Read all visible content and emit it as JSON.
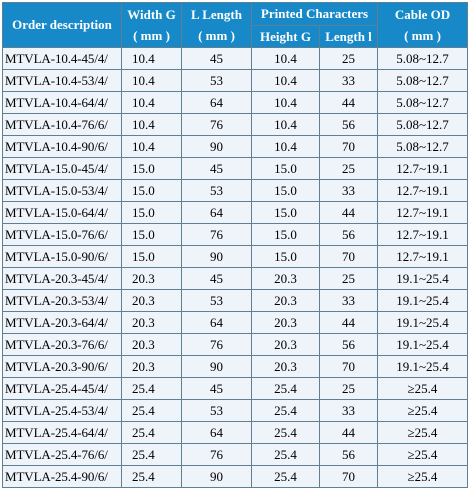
{
  "header": {
    "order_description": "Order description",
    "width_g": "Width G",
    "width_g_unit": "( mm )",
    "l_length": "L Length",
    "l_length_unit": "( mm )",
    "printed_characters": "Printed Characters",
    "height_g": "Height G",
    "length_l": "Length l",
    "cable_od": "Cable OD",
    "cable_od_unit": "( mm )"
  },
  "rows": [
    {
      "desc": "MTVLA-10.4-45/4/",
      "width": "10.4",
      "length": "45",
      "height": "10.4",
      "len_l": "25",
      "od": "5.08~12.7"
    },
    {
      "desc": "MTVLA-10.4-53/4/",
      "width": "10.4",
      "length": "53",
      "height": "10.4",
      "len_l": "33",
      "od": "5.08~12.7"
    },
    {
      "desc": "MTVLA-10.4-64/4/",
      "width": "10.4",
      "length": "64",
      "height": "10.4",
      "len_l": "44",
      "od": "5.08~12.7"
    },
    {
      "desc": "MTVLA-10.4-76/6/",
      "width": "10.4",
      "length": "76",
      "height": "10.4",
      "len_l": "56",
      "od": "5.08~12.7"
    },
    {
      "desc": "MTVLA-10.4-90/6/",
      "width": "10.4",
      "length": "90",
      "height": "10.4",
      "len_l": "70",
      "od": "5.08~12.7"
    },
    {
      "desc": "MTVLA-15.0-45/4/",
      "width": "15.0",
      "length": "45",
      "height": "15.0",
      "len_l": "25",
      "od": "12.7~19.1"
    },
    {
      "desc": "MTVLA-15.0-53/4/",
      "width": "15.0",
      "length": "53",
      "height": "15.0",
      "len_l": "33",
      "od": "12.7~19.1"
    },
    {
      "desc": "MTVLA-15.0-64/4/",
      "width": "15.0",
      "length": "64",
      "height": "15.0",
      "len_l": "44",
      "od": "12.7~19.1"
    },
    {
      "desc": "MTVLA-15.0-76/6/",
      "width": "15.0",
      "length": "76",
      "height": "15.0",
      "len_l": "56",
      "od": "12.7~19.1"
    },
    {
      "desc": "MTVLA-15.0-90/6/",
      "width": "15.0",
      "length": "90",
      "height": "15.0",
      "len_l": "70",
      "od": "12.7~19.1"
    },
    {
      "desc": "MTVLA-20.3-45/4/",
      "width": "20.3",
      "length": "45",
      "height": "20.3",
      "len_l": "25",
      "od": "19.1~25.4"
    },
    {
      "desc": "MTVLA-20.3-53/4/",
      "width": "20.3",
      "length": "53",
      "height": "20.3",
      "len_l": "33",
      "od": "19.1~25.4"
    },
    {
      "desc": "MTVLA-20.3-64/4/",
      "width": "20.3",
      "length": "64",
      "height": "20.3",
      "len_l": "44",
      "od": "19.1~25.4"
    },
    {
      "desc": "MTVLA-20.3-76/6/",
      "width": "20.3",
      "length": "76",
      "height": "20.3",
      "len_l": "56",
      "od": "19.1~25.4"
    },
    {
      "desc": "MTVLA-20.3-90/6/",
      "width": "20.3",
      "length": "90",
      "height": "20.3",
      "len_l": "70",
      "od": "19.1~25.4"
    },
    {
      "desc": "MTVLA-25.4-45/4/",
      "width": "25.4",
      "length": "45",
      "height": "25.4",
      "len_l": "25",
      "od": "≥25.4"
    },
    {
      "desc": "MTVLA-25.4-53/4/",
      "width": "25.4",
      "length": "53",
      "height": "25.4",
      "len_l": "33",
      "od": "≥25.4"
    },
    {
      "desc": "MTVLA-25.4-64/4/",
      "width": "25.4",
      "length": "64",
      "height": "25.4",
      "len_l": "44",
      "od": "≥25.4"
    },
    {
      "desc": "MTVLA-25.4-76/6/",
      "width": "25.4",
      "length": "76",
      "height": "25.4",
      "len_l": "56",
      "od": "≥25.4"
    },
    {
      "desc": "MTVLA-25.4-90/6/",
      "width": "25.4",
      "length": "90",
      "height": "25.4",
      "len_l": "70",
      "od": "≥25.4"
    }
  ],
  "colors": {
    "header_bg": "#1789c9",
    "header_text": "#ffffff",
    "cell_bg": "#eef4f9",
    "border": "#5f7f93"
  }
}
